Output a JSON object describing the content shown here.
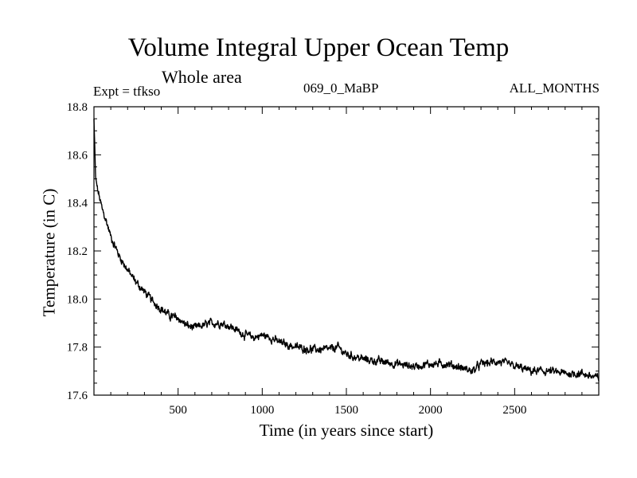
{
  "chart_data": {
    "type": "line",
    "title": "Volume Integral Upper Ocean Temp",
    "subtitle": "Whole area",
    "annotations": {
      "left": "Expt = tfkso",
      "center": "069_0_MaBP",
      "right": "ALL_MONTHS"
    },
    "xlabel": "Time (in years since start)",
    "ylabel": "Temperature (in C)",
    "xlim": [
      0,
      3000
    ],
    "ylim": [
      17.6,
      18.8
    ],
    "xticks": [
      500,
      1000,
      1500,
      2000,
      2500
    ],
    "xtick_labels": [
      "500",
      "1000",
      "1500",
      "2000",
      "2500"
    ],
    "yticks": [
      17.6,
      17.8,
      18.0,
      18.2,
      18.4,
      18.6,
      18.8
    ],
    "ytick_labels": [
      "17.6",
      "17.8",
      "18.0",
      "18.2",
      "18.4",
      "18.6",
      "18.8"
    ],
    "series": [
      {
        "name": "Temperature",
        "color": "#000000",
        "x": [
          0,
          5,
          10,
          20,
          30,
          50,
          75,
          100,
          150,
          200,
          250,
          300,
          350,
          400,
          450,
          500,
          550,
          600,
          650,
          700,
          750,
          800,
          850,
          900,
          950,
          1000,
          1050,
          1100,
          1200,
          1300,
          1400,
          1450,
          1500,
          1600,
          1700,
          1800,
          1900,
          2000,
          2100,
          2200,
          2250,
          2300,
          2400,
          2500,
          2600,
          2700,
          2800,
          2900,
          3000
        ],
        "values": [
          18.75,
          18.62,
          18.5,
          18.46,
          18.43,
          18.37,
          18.32,
          18.26,
          18.18,
          18.12,
          18.07,
          18.03,
          17.99,
          17.96,
          17.93,
          17.92,
          17.89,
          17.88,
          17.89,
          17.9,
          17.9,
          17.89,
          17.87,
          17.85,
          17.84,
          17.85,
          17.84,
          17.82,
          17.8,
          17.79,
          17.79,
          17.8,
          17.77,
          17.75,
          17.74,
          17.73,
          17.72,
          17.73,
          17.73,
          17.71,
          17.7,
          17.73,
          17.74,
          17.72,
          17.7,
          17.7,
          17.69,
          17.69,
          17.67
        ]
      }
    ]
  }
}
